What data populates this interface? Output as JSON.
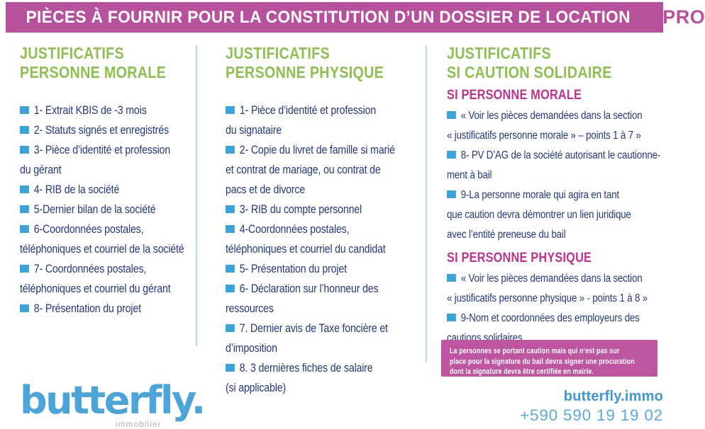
{
  "header": {
    "title": "PIÈCES À FOURNIR POUR LA CONSTITUTION D’UN DOSSIER DE LOCATION",
    "badge": "PRO"
  },
  "colors": {
    "magenta": "#b8519d",
    "note-bg": "#bd55a1",
    "green": "#8ec04f",
    "navy": "#24397e",
    "bullet": "#3aa4da",
    "divider": "#b5dbee",
    "subhead": "#c2308f",
    "logo-blue": "#4ba5d9",
    "web-blue": "#3e97d3",
    "phone-blue": "#5aaad9"
  },
  "columns": {
    "morale": {
      "heading": "JUSTIFICATIFS\nPERSONNE MORALE",
      "items": [
        "1- Extrait KBIS de -3 mois",
        "2- Statuts signés et enregistrés",
        "3- Pièce d’identité et profession\ndu gérant",
        "4- RIB de la société",
        "5-Dernier bilan de la société",
        "6-Coordonnées postales,\ntéléphoniques et courriel de la société",
        "7- Coordonnées postales,\ntéléphoniques et courriel du gérant",
        "8- Présentation du projet"
      ]
    },
    "physique": {
      "heading": "JUSTIFICATIFS\nPERSONNE PHYSIQUE",
      "items": [
        "1- Pièce d’identité et profession\ndu signataire",
        "2- Copie du livret de famille si marié\net contrat de mariage, ou contrat de\npacs et de divorce",
        "3- RIB du compte personnel",
        "4-Coordonnées postales,\ntéléphoniques et courriel du candidat",
        "5- Présentation du projet",
        "6- Déclaration sur l’honneur des\nressources",
        "7. Dernier avis de Taxe foncière et\nd’imposition",
        "8. 3 dernières fiches de salaire\n(si applicable)"
      ]
    },
    "caution": {
      "heading": "JUSTIFICATIFS\nSI CAUTION SOLIDAIRE",
      "morale_subheading": "SI PERSONNE MORALE",
      "morale_items": [
        "« Voir les pièces demandées dans la section\n« justificatifs personne morale » – points 1 à 7 »",
        "8- PV D’AG de la société autorisant le cautionne-\nment à bail",
        "9-La personne morale qui agira en tant\nque caution devra démontrer un lien juridique\navec l’entité preneuse du bail"
      ],
      "physique_subheading": "SI PERSONNE PHYSIQUE",
      "physique_items": [
        "« Voir les pièces demandées dans la section\n« justificatifs personne physique » - points 1 à 8 »",
        "9-Nom et coordonnées des employeurs des\ncautions solidaires"
      ]
    }
  },
  "note": {
    "text": "La personnes se portant caution mais qui n‘est pas sur\nplace pour la signature du bail devra signer une procuration\ndont la signature devra être certifiée en mairie."
  },
  "footer": {
    "logo": "butterfly.",
    "tagline": "immobilier",
    "website": "butterfly.immo",
    "phone": "+590 590 19 19 02"
  }
}
